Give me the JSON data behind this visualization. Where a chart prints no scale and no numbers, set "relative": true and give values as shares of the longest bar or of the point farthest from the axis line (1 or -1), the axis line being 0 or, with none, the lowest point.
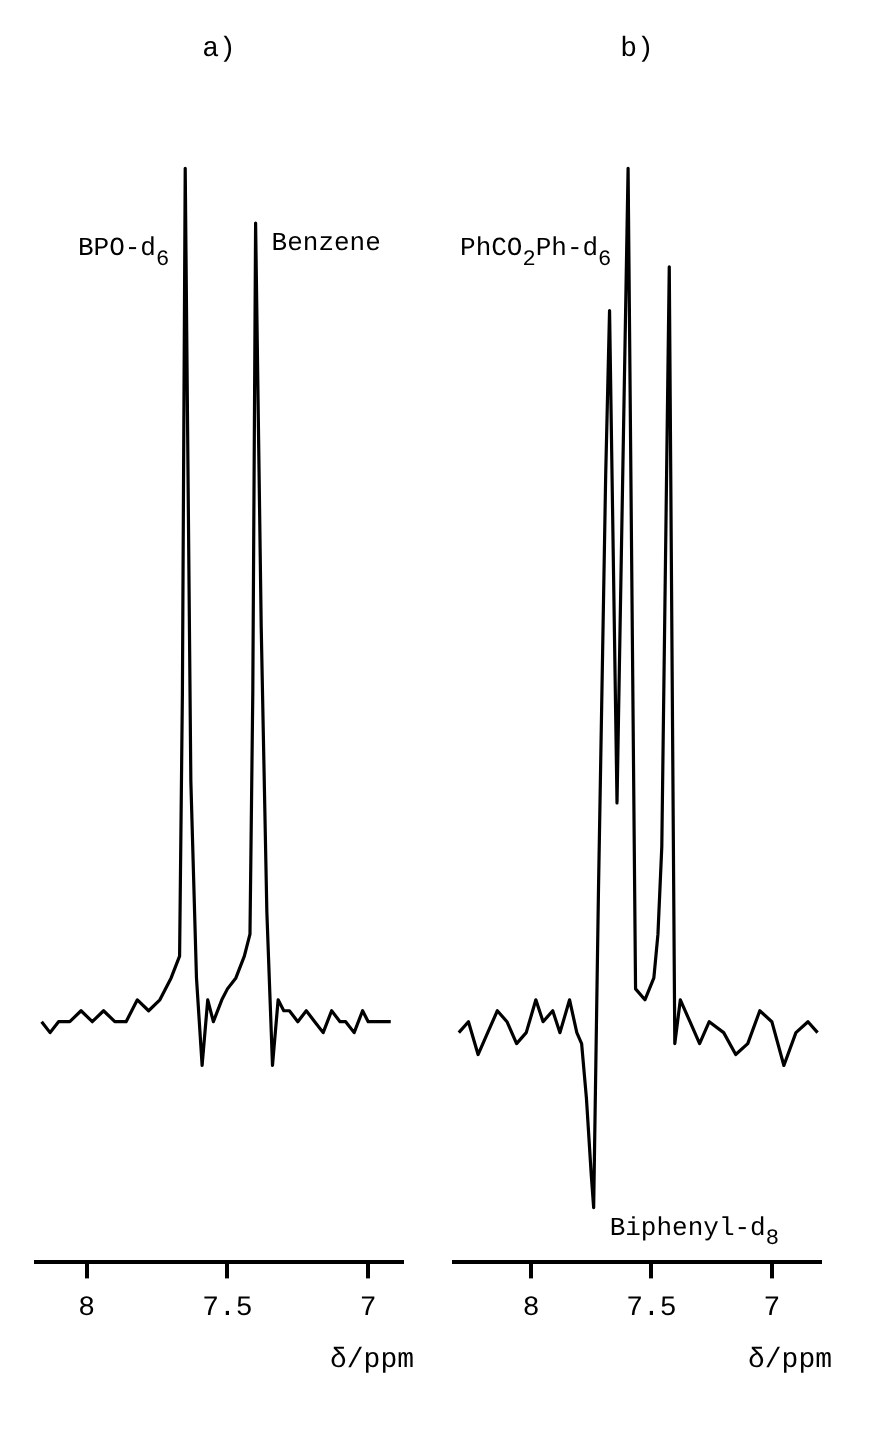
{
  "chart_data": [
    {
      "type": "line",
      "title": "a)",
      "xlabel": "δ/ppm",
      "relative": true,
      "marker": "none",
      "xlim": [
        8.18,
        6.88
      ],
      "xticks": [
        8,
        7.5,
        7
      ],
      "annotations": [
        {
          "text": "BPO-d$_{6}$",
          "x": 7.65,
          "y": 1.0
        },
        {
          "text": "Benzene",
          "x": 7.4,
          "y": 0.95
        }
      ],
      "series": [
        {
          "color": "#000000",
          "x": [
            8.16,
            8.13,
            8.1,
            8.06,
            8.02,
            7.98,
            7.94,
            7.9,
            7.86,
            7.82,
            7.78,
            7.74,
            7.7,
            7.67,
            7.66,
            7.65,
            7.63,
            7.61,
            7.59,
            7.57,
            7.55,
            7.52,
            7.5,
            7.47,
            7.44,
            7.42,
            7.41,
            7.4,
            7.38,
            7.36,
            7.34,
            7.32,
            7.3,
            7.28,
            7.25,
            7.22,
            7.19,
            7.16,
            7.13,
            7.1,
            7.08,
            7.05,
            7.02,
            7.0,
            6.96,
            6.92
          ],
          "values": [
            0.22,
            0.21,
            0.22,
            0.22,
            0.23,
            0.22,
            0.23,
            0.22,
            0.22,
            0.24,
            0.23,
            0.24,
            0.26,
            0.28,
            0.52,
            1.0,
            0.44,
            0.26,
            0.18,
            0.24,
            0.22,
            0.24,
            0.25,
            0.26,
            0.28,
            0.3,
            0.52,
            0.95,
            0.58,
            0.32,
            0.18,
            0.24,
            0.23,
            0.23,
            0.22,
            0.23,
            0.22,
            0.21,
            0.23,
            0.22,
            0.22,
            0.21,
            0.23,
            0.22,
            0.22,
            0.22
          ]
        }
      ]
    },
    {
      "type": "line",
      "title": "b)",
      "xlabel": "δ/ppm",
      "relative": true,
      "marker": "none",
      "xlim": [
        8.32,
        6.8
      ],
      "xticks": [
        8,
        7.5,
        7
      ],
      "annotations": [
        {
          "text": "PhCO$_{2}$Ph-d$_{6}$",
          "x": 7.6,
          "y": 1.0
        },
        {
          "text": "Biphenyl-d$_{8}$",
          "x": 7.74,
          "y": 0.05
        }
      ],
      "series": [
        {
          "color": "#000000",
          "x": [
            8.3,
            8.26,
            8.22,
            8.18,
            8.14,
            8.1,
            8.06,
            8.02,
            7.98,
            7.95,
            7.91,
            7.88,
            7.84,
            7.81,
            7.79,
            7.77,
            7.75,
            7.74,
            7.72,
            7.69,
            7.674,
            7.643,
            7.597,
            7.566,
            7.527,
            7.49,
            7.473,
            7.457,
            7.426,
            7.403,
            7.38,
            7.34,
            7.3,
            7.26,
            7.2,
            7.15,
            7.1,
            7.05,
            7.0,
            6.95,
            6.9,
            6.85,
            6.81
          ],
          "values": [
            0.21,
            0.22,
            0.19,
            0.21,
            0.23,
            0.22,
            0.2,
            0.21,
            0.24,
            0.22,
            0.23,
            0.21,
            0.24,
            0.21,
            0.2,
            0.15,
            0.08,
            0.05,
            0.34,
            0.72,
            0.87,
            0.42,
            1.0,
            0.25,
            0.24,
            0.26,
            0.3,
            0.38,
            0.91,
            0.2,
            0.24,
            0.22,
            0.2,
            0.22,
            0.21,
            0.19,
            0.2,
            0.23,
            0.22,
            0.18,
            0.21,
            0.22,
            0.21
          ]
        }
      ]
    }
  ]
}
